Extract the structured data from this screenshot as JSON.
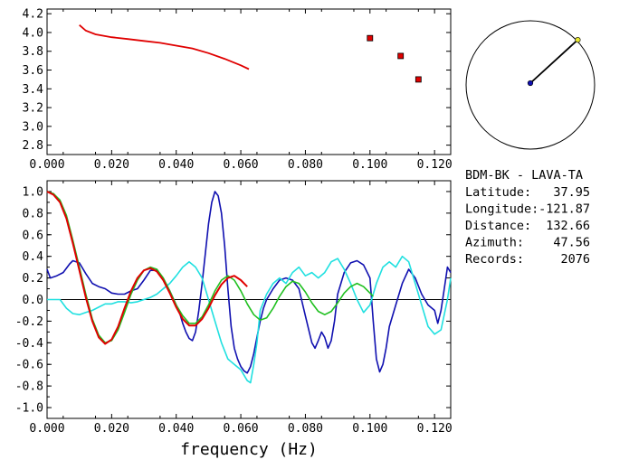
{
  "colors": {
    "red": "#e00000",
    "green": "#20c020",
    "blue": "#1010b0",
    "cyan": "#20e0e0",
    "frame": "#000000",
    "marker_fill": "#e00000",
    "endpoint_fill": "#e8e830",
    "station_fill": "#1010b0"
  },
  "info": {
    "title": "BDM-BK  -  LAVA-TA",
    "lines": [
      {
        "label": "Latitude:",
        "value": "37.95"
      },
      {
        "label": "Longitude:",
        "value": "-121.87"
      },
      {
        "label": "Distance:",
        "value": "132.66"
      },
      {
        "label": "Azimuth:",
        "value": "47.56"
      },
      {
        "label": "Records:",
        "value": "2076"
      }
    ]
  },
  "compass": {
    "azimuth_deg": 47.56
  },
  "chart_data": [
    {
      "type": "scatter",
      "xlim": [
        0.0,
        0.125
      ],
      "ylim": [
        2.7,
        4.25
      ],
      "x_ticks": [
        "0.000",
        "0.020",
        "0.040",
        "0.060",
        "0.080",
        "0.100",
        "0.120"
      ],
      "y_ticks": [
        "2.8",
        "3.0",
        "3.2",
        "3.4",
        "3.6",
        "3.8",
        "4.0",
        "4.2"
      ],
      "line": {
        "x": [
          0.01,
          0.012,
          0.015,
          0.02,
          0.025,
          0.03,
          0.035,
          0.04,
          0.045,
          0.05,
          0.055,
          0.06,
          0.0625
        ],
        "y": [
          4.08,
          4.02,
          3.98,
          3.95,
          3.93,
          3.91,
          3.89,
          3.86,
          3.83,
          3.78,
          3.72,
          3.65,
          3.61
        ]
      },
      "points": [
        {
          "x": 0.1,
          "y": 3.94
        },
        {
          "x": 0.1095,
          "y": 3.75
        },
        {
          "x": 0.115,
          "y": 3.5
        }
      ]
    },
    {
      "type": "line",
      "xlabel": "frequency (Hz)",
      "xlim": [
        0.0,
        0.125
      ],
      "ylim": [
        -1.1,
        1.1
      ],
      "x_ticks": [
        "0.000",
        "0.020",
        "0.040",
        "0.060",
        "0.080",
        "0.100",
        "0.120"
      ],
      "y_ticks": [
        "1.0",
        "0.8",
        "0.6",
        "0.4",
        "0.2",
        "0.0",
        "-0.2",
        "-0.4",
        "-0.6",
        "-0.8",
        "-1.0"
      ],
      "zero_line": true,
      "series": [
        {
          "color_key": "blue",
          "x": [
            0,
            0.001,
            0.003,
            0.005,
            0.007,
            0.008,
            0.01,
            0.012,
            0.014,
            0.016,
            0.018,
            0.02,
            0.022,
            0.024,
            0.026,
            0.028,
            0.03,
            0.032,
            0.034,
            0.036,
            0.038,
            0.04,
            0.041,
            0.042,
            0.043,
            0.044,
            0.045,
            0.046,
            0.047,
            0.048,
            0.049,
            0.05,
            0.051,
            0.052,
            0.053,
            0.054,
            0.055,
            0.056,
            0.057,
            0.058,
            0.059,
            0.06,
            0.061,
            0.062,
            0.063,
            0.064,
            0.065,
            0.066,
            0.067,
            0.068,
            0.07,
            0.072,
            0.074,
            0.076,
            0.078,
            0.08,
            0.082,
            0.083,
            0.084,
            0.085,
            0.086,
            0.087,
            0.088,
            0.089,
            0.09,
            0.092,
            0.094,
            0.096,
            0.098,
            0.1,
            0.101,
            0.102,
            0.103,
            0.104,
            0.105,
            0.106,
            0.108,
            0.11,
            0.112,
            0.114,
            0.116,
            0.118,
            0.12,
            0.121,
            0.122,
            0.123,
            0.124,
            0.125
          ],
          "y": [
            0.28,
            0.2,
            0.22,
            0.25,
            0.33,
            0.36,
            0.34,
            0.24,
            0.15,
            0.12,
            0.1,
            0.06,
            0.05,
            0.05,
            0.08,
            0.1,
            0.18,
            0.27,
            0.27,
            0.18,
            0.08,
            -0.05,
            -0.12,
            -0.22,
            -0.3,
            -0.36,
            -0.38,
            -0.3,
            -0.1,
            0.15,
            0.42,
            0.7,
            0.9,
            1.0,
            0.96,
            0.8,
            0.5,
            0.1,
            -0.25,
            -0.45,
            -0.55,
            -0.62,
            -0.66,
            -0.68,
            -0.62,
            -0.5,
            -0.35,
            -0.2,
            -0.08,
            0.0,
            0.1,
            0.18,
            0.2,
            0.18,
            0.1,
            -0.15,
            -0.4,
            -0.45,
            -0.38,
            -0.3,
            -0.35,
            -0.45,
            -0.38,
            -0.2,
            0.05,
            0.25,
            0.34,
            0.36,
            0.32,
            0.2,
            -0.2,
            -0.55,
            -0.67,
            -0.6,
            -0.45,
            -0.25,
            -0.05,
            0.15,
            0.28,
            0.2,
            0.05,
            -0.05,
            -0.1,
            -0.22,
            -0.1,
            0.1,
            0.3,
            0.25
          ]
        },
        {
          "color_key": "cyan",
          "x": [
            0,
            0.002,
            0.004,
            0.006,
            0.008,
            0.01,
            0.012,
            0.014,
            0.016,
            0.018,
            0.02,
            0.022,
            0.024,
            0.026,
            0.028,
            0.03,
            0.032,
            0.034,
            0.036,
            0.038,
            0.04,
            0.042,
            0.044,
            0.046,
            0.048,
            0.05,
            0.052,
            0.054,
            0.056,
            0.058,
            0.06,
            0.062,
            0.063,
            0.064,
            0.065,
            0.066,
            0.068,
            0.07,
            0.072,
            0.074,
            0.076,
            0.078,
            0.08,
            0.082,
            0.084,
            0.086,
            0.088,
            0.09,
            0.092,
            0.094,
            0.096,
            0.098,
            0.1,
            0.102,
            0.104,
            0.106,
            0.108,
            0.11,
            0.112,
            0.114,
            0.116,
            0.118,
            0.12,
            0.122,
            0.124,
            0.125
          ],
          "y": [
            0.0,
            0.0,
            0.0,
            -0.08,
            -0.13,
            -0.14,
            -0.12,
            -0.1,
            -0.07,
            -0.04,
            -0.04,
            -0.02,
            -0.02,
            -0.03,
            -0.02,
            0.0,
            0.02,
            0.05,
            0.1,
            0.15,
            0.22,
            0.3,
            0.35,
            0.3,
            0.2,
            0.0,
            -0.2,
            -0.4,
            -0.55,
            -0.6,
            -0.65,
            -0.75,
            -0.77,
            -0.6,
            -0.4,
            -0.1,
            0.05,
            0.15,
            0.2,
            0.15,
            0.25,
            0.3,
            0.22,
            0.25,
            0.2,
            0.25,
            0.35,
            0.38,
            0.28,
            0.15,
            0.0,
            -0.12,
            -0.05,
            0.15,
            0.3,
            0.35,
            0.3,
            0.4,
            0.35,
            0.15,
            -0.05,
            -0.25,
            -0.32,
            -0.28,
            0.0,
            0.2
          ]
        },
        {
          "color_key": "green",
          "x": [
            0,
            0.002,
            0.004,
            0.006,
            0.008,
            0.01,
            0.012,
            0.014,
            0.016,
            0.018,
            0.02,
            0.022,
            0.024,
            0.026,
            0.028,
            0.03,
            0.032,
            0.034,
            0.036,
            0.038,
            0.04,
            0.042,
            0.044,
            0.046,
            0.048,
            0.05,
            0.052,
            0.054,
            0.056,
            0.058,
            0.06,
            0.062,
            0.064,
            0.066,
            0.068,
            0.07,
            0.072,
            0.074,
            0.076,
            0.078,
            0.08,
            0.082,
            0.084,
            0.086,
            0.088,
            0.09,
            0.092,
            0.094,
            0.096,
            0.098,
            0.1,
            0.101
          ],
          "y": [
            1.0,
            0.98,
            0.92,
            0.78,
            0.55,
            0.3,
            0.05,
            -0.18,
            -0.33,
            -0.4,
            -0.38,
            -0.28,
            -0.12,
            0.05,
            0.18,
            0.27,
            0.3,
            0.28,
            0.2,
            0.08,
            -0.05,
            -0.15,
            -0.22,
            -0.22,
            -0.16,
            -0.05,
            0.08,
            0.18,
            0.22,
            0.18,
            0.08,
            -0.04,
            -0.14,
            -0.19,
            -0.17,
            -0.08,
            0.03,
            0.12,
            0.17,
            0.15,
            0.07,
            -0.03,
            -0.11,
            -0.14,
            -0.11,
            -0.03,
            0.06,
            0.12,
            0.15,
            0.12,
            0.06,
            0.03
          ]
        },
        {
          "color_key": "red",
          "x": [
            0,
            0.002,
            0.004,
            0.006,
            0.008,
            0.01,
            0.012,
            0.014,
            0.016,
            0.018,
            0.02,
            0.022,
            0.024,
            0.026,
            0.028,
            0.03,
            0.032,
            0.034,
            0.036,
            0.038,
            0.04,
            0.042,
            0.044,
            0.046,
            0.048,
            0.05,
            0.052,
            0.054,
            0.056,
            0.058,
            0.06,
            0.062
          ],
          "y": [
            1.0,
            0.97,
            0.9,
            0.75,
            0.52,
            0.27,
            0.02,
            -0.2,
            -0.35,
            -0.41,
            -0.37,
            -0.25,
            -0.08,
            0.08,
            0.2,
            0.27,
            0.29,
            0.26,
            0.18,
            0.06,
            -0.07,
            -0.18,
            -0.24,
            -0.24,
            -0.18,
            -0.08,
            0.04,
            0.14,
            0.2,
            0.22,
            0.18,
            0.12
          ]
        }
      ]
    }
  ]
}
